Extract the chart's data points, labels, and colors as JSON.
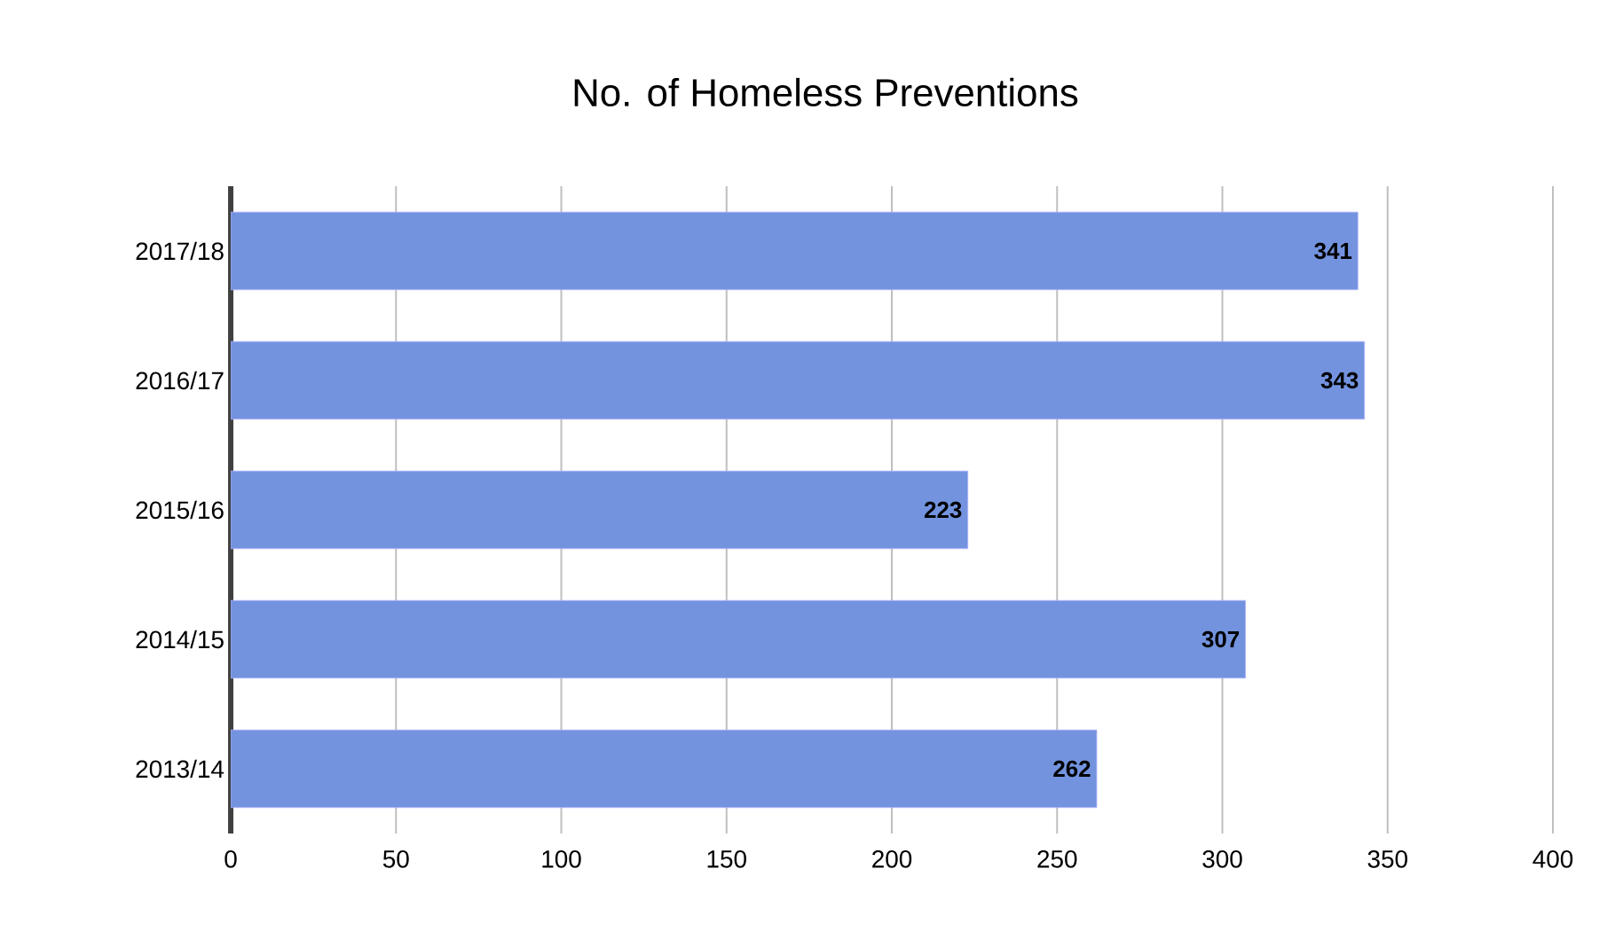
{
  "chart_data": {
    "type": "bar",
    "orientation": "horizontal",
    "title": "No. of Homeless Preventions",
    "categories": [
      "2017/18",
      "2016/17",
      "2015/16",
      "2014/15",
      "2013/14"
    ],
    "values": [
      341,
      343,
      223,
      307,
      262
    ],
    "color": "#7393de",
    "xlim": [
      0,
      400
    ],
    "xticks": [
      0,
      50,
      100,
      150,
      200,
      250,
      300,
      350,
      400
    ],
    "grid": "x",
    "data_labels": true
  }
}
